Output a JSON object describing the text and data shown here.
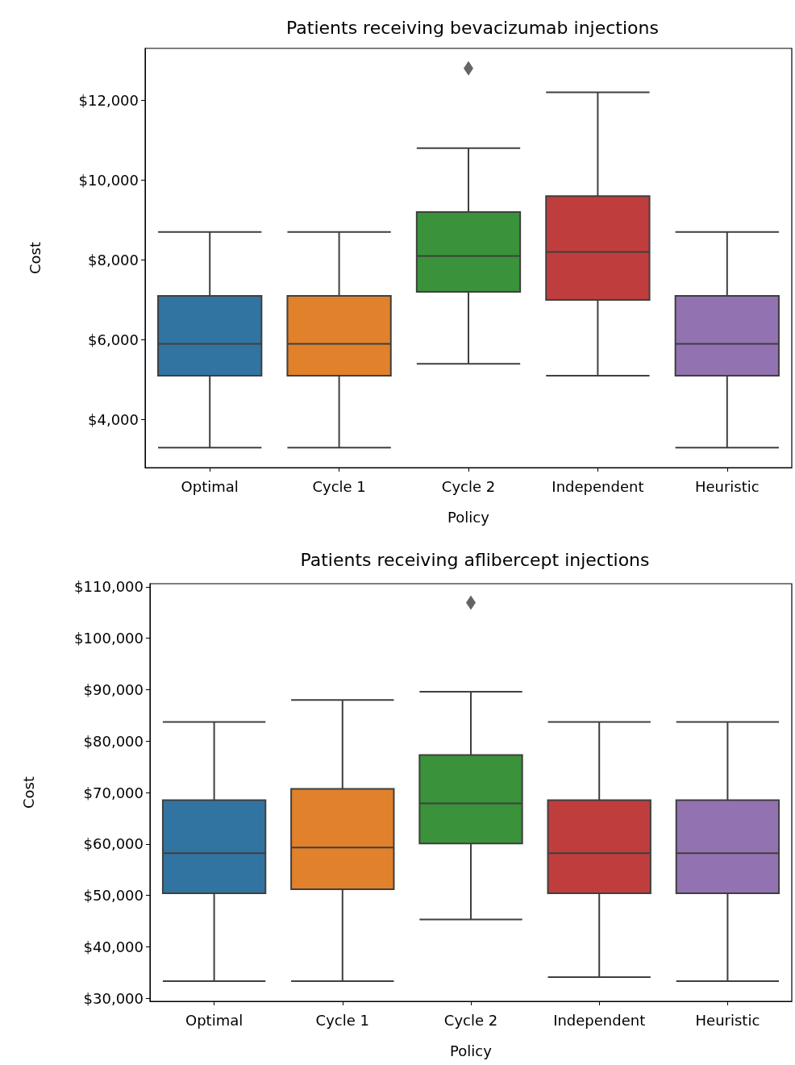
{
  "chart_data": [
    {
      "type": "box",
      "title": "Patients receiving bevacizumab injections",
      "xlabel": "Policy",
      "ylabel": "Cost",
      "categories": [
        "Optimal",
        "Cycle 1",
        "Cycle 2",
        "Independent",
        "Heuristic"
      ],
      "colors": [
        "#3274a1",
        "#e1812c",
        "#3a923a",
        "#c03d3e",
        "#9372b2"
      ],
      "boxes": [
        {
          "low": 3300,
          "q1": 5100,
          "median": 5900,
          "q3": 7100,
          "high": 8700
        },
        {
          "low": 3300,
          "q1": 5100,
          "median": 5900,
          "q3": 7100,
          "high": 8700
        },
        {
          "low": 5400,
          "q1": 7200,
          "median": 8100,
          "q3": 9200,
          "high": 10800,
          "outliers": [
            12800
          ]
        },
        {
          "low": 5100,
          "q1": 7000,
          "median": 8200,
          "q3": 9600,
          "high": 12200
        },
        {
          "low": 3300,
          "q1": 5100,
          "median": 5900,
          "q3": 7100,
          "high": 8700
        }
      ],
      "ylim": [
        2800,
        13300
      ],
      "yticks": [
        {
          "value": 4000,
          "label": "$4,000"
        },
        {
          "value": 6000,
          "label": "$6,000"
        },
        {
          "value": 8000,
          "label": "$8,000"
        },
        {
          "value": 10000,
          "label": "$10,000"
        },
        {
          "value": 12000,
          "label": "$12,000"
        }
      ],
      "grid": false,
      "marker": "diamond"
    },
    {
      "type": "box",
      "title": "Patients receiving aflibercept injections",
      "xlabel": "Policy",
      "ylabel": "Cost",
      "categories": [
        "Optimal",
        "Cycle 1",
        "Cycle 2",
        "Independent",
        "Heuristic"
      ],
      "colors": [
        "#3274a1",
        "#e1812c",
        "#3a923a",
        "#c03d3e",
        "#9372b2"
      ],
      "boxes": [
        {
          "low": 33300,
          "q1": 50400,
          "median": 58200,
          "q3": 68500,
          "high": 83700
        },
        {
          "low": 33300,
          "q1": 51200,
          "median": 59300,
          "q3": 70700,
          "high": 88000
        },
        {
          "low": 45300,
          "q1": 60100,
          "median": 67900,
          "q3": 77300,
          "high": 89600,
          "outliers": [
            106900
          ]
        },
        {
          "low": 34100,
          "q1": 50400,
          "median": 58200,
          "q3": 68500,
          "high": 83700
        },
        {
          "low": 33300,
          "q1": 50400,
          "median": 58200,
          "q3": 68500,
          "high": 83700
        }
      ],
      "ylim": [
        29400,
        110600
      ],
      "yticks": [
        {
          "value": 30000,
          "label": "$30,000"
        },
        {
          "value": 40000,
          "label": "$40,000"
        },
        {
          "value": 50000,
          "label": "$50,000"
        },
        {
          "value": 60000,
          "label": "$60,000"
        },
        {
          "value": 70000,
          "label": "$70,000"
        },
        {
          "value": 80000,
          "label": "$80,000"
        },
        {
          "value": 90000,
          "label": "$90,000"
        },
        {
          "value": 100000,
          "label": "$100,000"
        },
        {
          "value": 110000,
          "label": "$110,000"
        }
      ],
      "grid": false,
      "marker": "diamond"
    }
  ]
}
